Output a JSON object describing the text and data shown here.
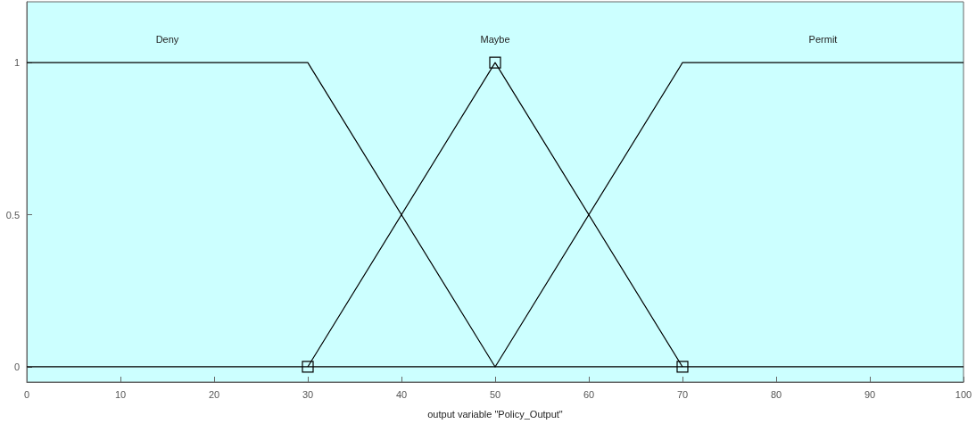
{
  "chart_data": {
    "type": "line",
    "xlabel": "output variable \"Policy_Output\"",
    "xlim": [
      0,
      100
    ],
    "xticks": [
      0,
      10,
      20,
      30,
      40,
      50,
      60,
      70,
      80,
      90,
      100
    ],
    "ylim": [
      -0.05,
      1.2
    ],
    "yticks": [
      0,
      0.5,
      1
    ],
    "grid": false,
    "series": [
      {
        "name": "Deny",
        "x": [
          0,
          30,
          50,
          100
        ],
        "values": [
          1,
          1,
          0,
          0
        ],
        "color": "#000000",
        "marker": "none"
      },
      {
        "name": "Maybe",
        "x": [
          30,
          50,
          70
        ],
        "values": [
          0,
          1,
          0
        ],
        "color": "#000000",
        "marker": "square"
      },
      {
        "name": "Permit",
        "x": [
          0,
          50,
          70,
          100
        ],
        "values": [
          0,
          0,
          1,
          1
        ],
        "color": "#000000",
        "marker": "none"
      }
    ]
  }
}
